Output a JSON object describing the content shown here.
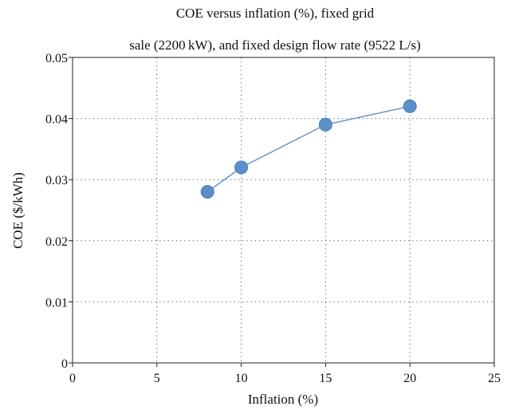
{
  "chart_data": {
    "type": "line",
    "title_lines": [
      "COE versus inflation (%), fixed grid",
      "sale (2200 kW), and fixed design flow rate (9522 L/s)"
    ],
    "xlabel": "Inflation (%)",
    "ylabel": "COE ($/kWh)",
    "xlim": [
      0,
      25
    ],
    "ylim": [
      0,
      0.05
    ],
    "x_ticks": [
      0,
      5,
      10,
      15,
      20,
      25
    ],
    "x_tick_labels": [
      "0",
      "5",
      "10",
      "15",
      "20",
      "25"
    ],
    "y_ticks": [
      0,
      0.01,
      0.02,
      0.03,
      0.04,
      0.05
    ],
    "y_tick_labels": [
      "0",
      "0.01",
      "0.02",
      "0.03",
      "0.04",
      "0.05"
    ],
    "grid": "dotted",
    "marker": "circle",
    "colors": {
      "series": "#5b8fc9",
      "grid": "#555555",
      "axis": "#222222"
    },
    "series": [
      {
        "x": [
          8,
          10,
          15,
          20
        ],
        "y": [
          0.028,
          0.032,
          0.039,
          0.042
        ]
      }
    ]
  }
}
